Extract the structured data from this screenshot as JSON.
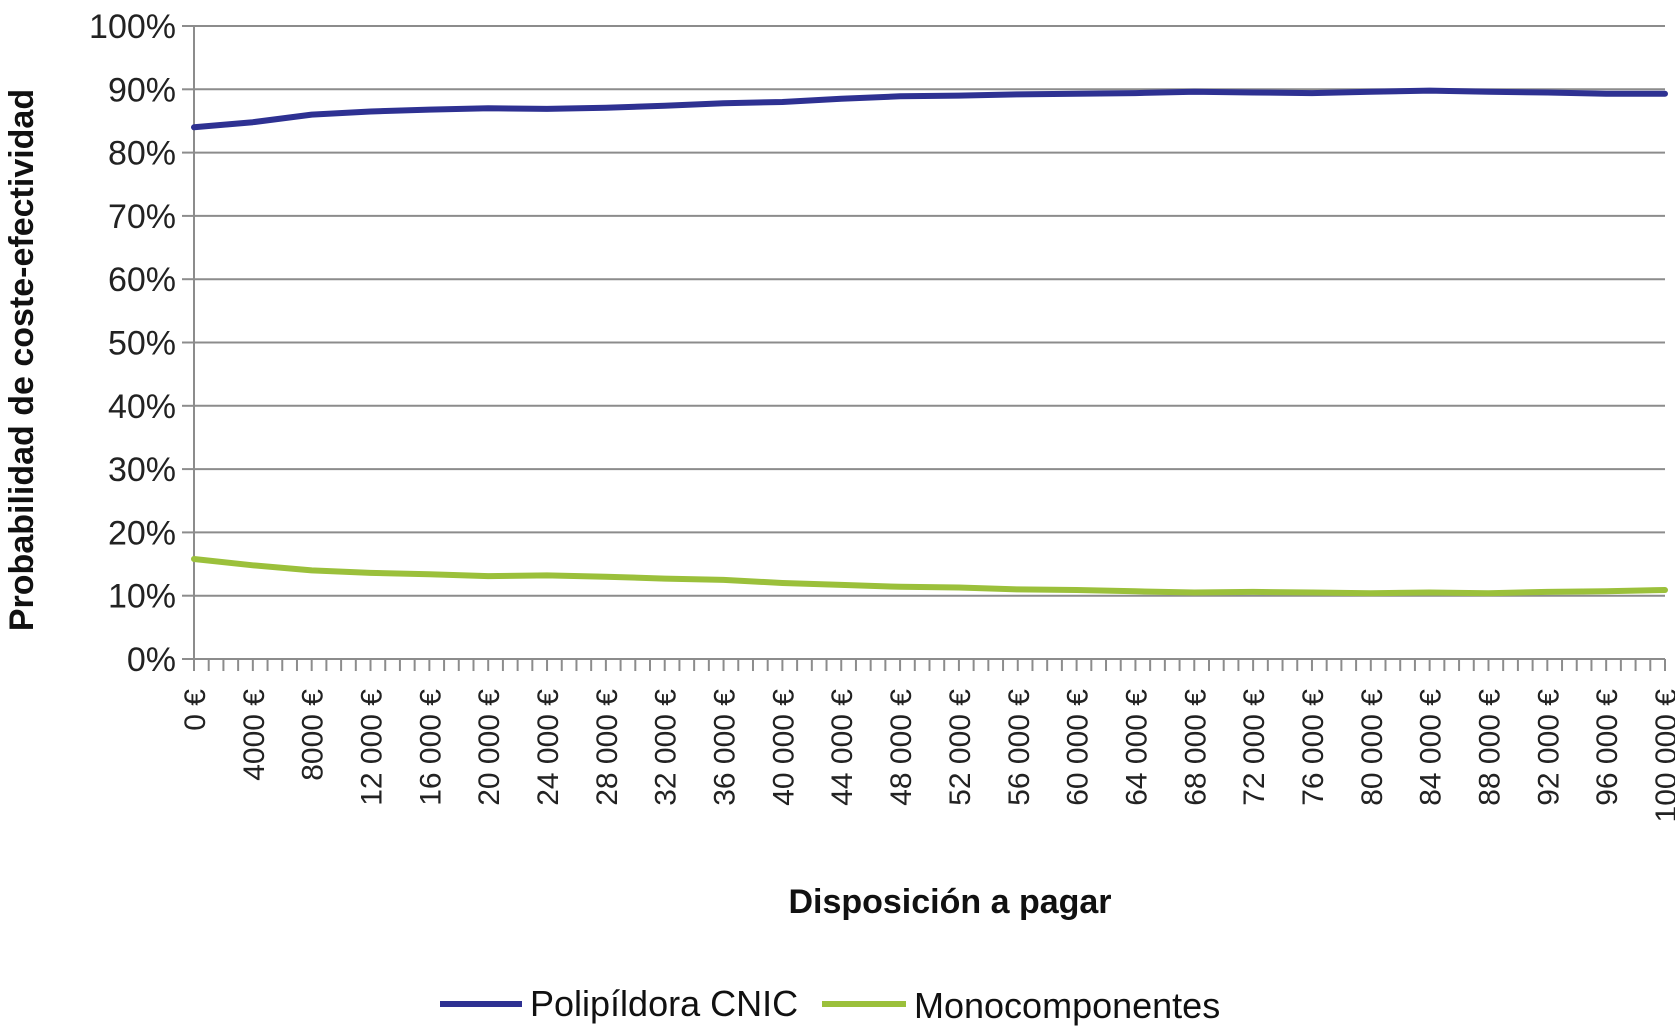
{
  "chart_data": {
    "type": "line",
    "xlabel": "Disposición a pagar",
    "ylabel": "Probabilidad de coste-efectividad",
    "ylim": [
      0,
      100
    ],
    "xlim": [
      0,
      100000
    ],
    "y_ticks": [
      "0%",
      "10%",
      "20%",
      "30%",
      "40%",
      "50%",
      "60%",
      "70%",
      "80%",
      "90%",
      "100%"
    ],
    "x_ticks": [
      "0 €",
      "4000 €",
      "8000 €",
      "12 000 €",
      "16 000 €",
      "20 000 €",
      "24 000 €",
      "28 000 €",
      "32 000 €",
      "36 000 €",
      "40 000 €",
      "44 000 €",
      "48 000 €",
      "52 000 €",
      "56 000 €",
      "60 000 €",
      "64 000 €",
      "68 000 €",
      "72 000 €",
      "76 000 €",
      "80 000 €",
      "84 000 €",
      "88 000 €",
      "92 000 €",
      "96 000 €",
      "100 000 €"
    ],
    "grid": true,
    "legend_position": "bottom",
    "x": [
      0,
      4000,
      8000,
      12000,
      16000,
      20000,
      24000,
      28000,
      32000,
      36000,
      40000,
      44000,
      48000,
      52000,
      56000,
      60000,
      64000,
      68000,
      72000,
      76000,
      80000,
      84000,
      88000,
      92000,
      96000,
      100000
    ],
    "series": [
      {
        "name": "Polipíldora CNIC",
        "color": "#2e3192",
        "values": [
          84.0,
          84.8,
          86.0,
          86.5,
          86.8,
          87.0,
          86.9,
          87.1,
          87.4,
          87.8,
          88.0,
          88.5,
          88.9,
          89.0,
          89.2,
          89.3,
          89.4,
          89.6,
          89.5,
          89.4,
          89.6,
          89.8,
          89.6,
          89.5,
          89.3,
          89.3
        ]
      },
      {
        "name": "Monocomponentes",
        "color": "#9bc03b",
        "values": [
          15.8,
          14.8,
          14.0,
          13.6,
          13.4,
          13.1,
          13.2,
          13.0,
          12.7,
          12.5,
          12.0,
          11.7,
          11.4,
          11.3,
          11.0,
          10.9,
          10.7,
          10.5,
          10.6,
          10.5,
          10.4,
          10.5,
          10.4,
          10.6,
          10.7,
          10.9
        ]
      }
    ]
  }
}
